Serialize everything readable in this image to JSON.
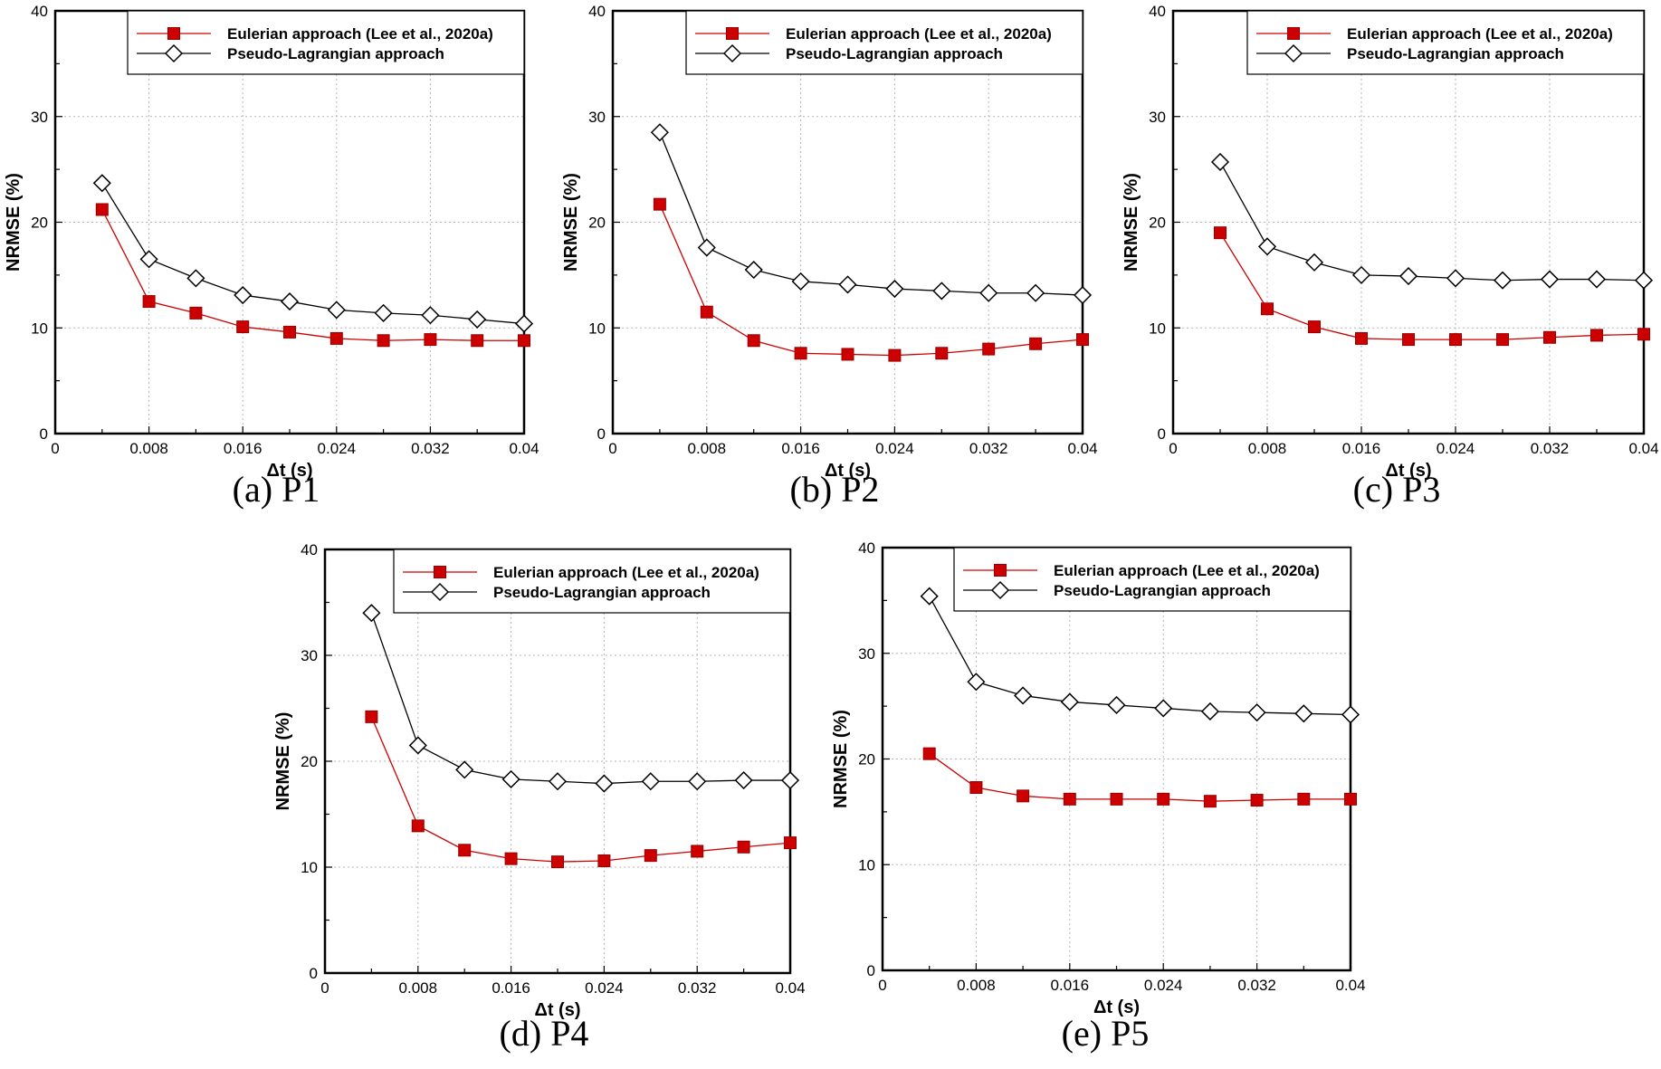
{
  "figure": {
    "panels": [
      {
        "caption": "(a) P1"
      },
      {
        "caption": "(b) P2"
      },
      {
        "caption": "(c) P3"
      },
      {
        "caption": "(d) P4"
      },
      {
        "caption": "(e) P5"
      }
    ]
  },
  "colors": {
    "eulerian": "#cc0000",
    "lagrangian": "#000000"
  },
  "chart_data": [
    {
      "type": "line",
      "title": "(a) P1",
      "xlabel": "Δt (s)",
      "ylabel": "NRMSE (%)",
      "xlim": [
        0,
        0.04
      ],
      "ylim": [
        0,
        40
      ],
      "xticks": [
        0,
        0.008,
        0.016,
        0.024,
        0.032,
        0.04
      ],
      "xtick_labels": [
        "0",
        "0.008",
        "0.016",
        "0.024",
        "0.032",
        "0.04"
      ],
      "yticks": [
        0,
        10,
        20,
        30,
        40
      ],
      "ytick_labels": [
        "0",
        "10",
        "20",
        "30",
        "40"
      ],
      "grid": true,
      "legend": "top-right",
      "x": [
        0.004,
        0.008,
        0.012,
        0.016,
        0.02,
        0.024,
        0.028,
        0.032,
        0.036,
        0.04
      ],
      "series": [
        {
          "name": "Eulerian approach (Lee et al., 2020a)",
          "marker": "square",
          "values": [
            21.2,
            12.5,
            11.4,
            10.1,
            9.6,
            9.0,
            8.8,
            8.9,
            8.8,
            8.8
          ]
        },
        {
          "name": "Pseudo-Lagrangian approach",
          "marker": "diamond",
          "values": [
            23.7,
            16.5,
            14.7,
            13.1,
            12.5,
            11.7,
            11.4,
            11.2,
            10.8,
            10.4
          ]
        }
      ]
    },
    {
      "type": "line",
      "title": "(b) P2",
      "xlabel": "Δt (s)",
      "ylabel": "NRMSE (%)",
      "xlim": [
        0,
        0.04
      ],
      "ylim": [
        0,
        40
      ],
      "xticks": [
        0,
        0.008,
        0.016,
        0.024,
        0.032,
        0.04
      ],
      "xtick_labels": [
        "0",
        "0.008",
        "0.016",
        "0.024",
        "0.032",
        "0.04"
      ],
      "yticks": [
        0,
        10,
        20,
        30,
        40
      ],
      "ytick_labels": [
        "0",
        "10",
        "20",
        "30",
        "40"
      ],
      "grid": true,
      "legend": "top-right",
      "x": [
        0.004,
        0.008,
        0.012,
        0.016,
        0.02,
        0.024,
        0.028,
        0.032,
        0.036,
        0.04
      ],
      "series": [
        {
          "name": "Eulerian approach (Lee et al., 2020a)",
          "marker": "square",
          "values": [
            21.7,
            11.5,
            8.8,
            7.6,
            7.5,
            7.4,
            7.6,
            8.0,
            8.5,
            8.9
          ]
        },
        {
          "name": "Pseudo-Lagrangian approach",
          "marker": "diamond",
          "values": [
            28.5,
            17.6,
            15.5,
            14.4,
            14.1,
            13.7,
            13.5,
            13.3,
            13.3,
            13.1
          ]
        }
      ]
    },
    {
      "type": "line",
      "title": "(c) P3",
      "xlabel": "Δt (s)",
      "ylabel": "NRMSE (%)",
      "xlim": [
        0,
        0.04
      ],
      "ylim": [
        0,
        40
      ],
      "xticks": [
        0,
        0.008,
        0.016,
        0.024,
        0.032,
        0.04
      ],
      "xtick_labels": [
        "0",
        "0.008",
        "0.016",
        "0.024",
        "0.032",
        "0.04"
      ],
      "yticks": [
        0,
        10,
        20,
        30,
        40
      ],
      "ytick_labels": [
        "0",
        "10",
        "20",
        "30",
        "40"
      ],
      "grid": true,
      "legend": "top-right",
      "x": [
        0.004,
        0.008,
        0.012,
        0.016,
        0.02,
        0.024,
        0.028,
        0.032,
        0.036,
        0.04
      ],
      "series": [
        {
          "name": "Eulerian approach (Lee et al., 2020a)",
          "marker": "square",
          "values": [
            19.0,
            11.8,
            10.1,
            9.0,
            8.9,
            8.9,
            8.9,
            9.1,
            9.3,
            9.4
          ]
        },
        {
          "name": "Pseudo-Lagrangian approach",
          "marker": "diamond",
          "values": [
            25.7,
            17.7,
            16.2,
            15.0,
            14.9,
            14.7,
            14.5,
            14.6,
            14.6,
            14.5
          ]
        }
      ]
    },
    {
      "type": "line",
      "title": "(d) P4",
      "xlabel": "Δt (s)",
      "ylabel": "NRMSE (%)",
      "xlim": [
        0,
        0.04
      ],
      "ylim": [
        0,
        40
      ],
      "xticks": [
        0,
        0.008,
        0.016,
        0.024,
        0.032,
        0.04
      ],
      "xtick_labels": [
        "0",
        "0.008",
        "0.016",
        "0.024",
        "0.032",
        "0.04"
      ],
      "yticks": [
        0,
        10,
        20,
        30,
        40
      ],
      "ytick_labels": [
        "0",
        "10",
        "20",
        "30",
        "40"
      ],
      "grid": true,
      "legend": "top-right",
      "x": [
        0.004,
        0.008,
        0.012,
        0.016,
        0.02,
        0.024,
        0.028,
        0.032,
        0.036,
        0.04
      ],
      "series": [
        {
          "name": "Eulerian approach (Lee et al., 2020a)",
          "marker": "square",
          "values": [
            24.2,
            13.9,
            11.6,
            10.8,
            10.5,
            10.6,
            11.1,
            11.5,
            11.9,
            12.3
          ]
        },
        {
          "name": "Pseudo-Lagrangian approach",
          "marker": "diamond",
          "values": [
            34.0,
            21.5,
            19.2,
            18.3,
            18.1,
            17.9,
            18.1,
            18.1,
            18.2,
            18.2
          ]
        }
      ]
    },
    {
      "type": "line",
      "title": "(e) P5",
      "xlabel": "Δt (s)",
      "ylabel": "NRMSE (%)",
      "xlim": [
        0,
        0.04
      ],
      "ylim": [
        0,
        40
      ],
      "xticks": [
        0,
        0.008,
        0.016,
        0.024,
        0.032,
        0.04
      ],
      "xtick_labels": [
        "0",
        "0.008",
        "0.016",
        "0.024",
        "0.032",
        "0.04"
      ],
      "yticks": [
        0,
        10,
        20,
        30,
        40
      ],
      "ytick_labels": [
        "0",
        "10",
        "20",
        "30",
        "40"
      ],
      "grid": true,
      "legend": "top-right",
      "x": [
        0.004,
        0.008,
        0.012,
        0.016,
        0.02,
        0.024,
        0.028,
        0.032,
        0.036,
        0.04
      ],
      "series": [
        {
          "name": "Eulerian approach (Lee et al., 2020a)",
          "marker": "square",
          "values": [
            20.5,
            17.3,
            16.5,
            16.2,
            16.2,
            16.2,
            16.0,
            16.1,
            16.2,
            16.2
          ]
        },
        {
          "name": "Pseudo-Lagrangian approach",
          "marker": "diamond",
          "values": [
            35.4,
            27.3,
            26.0,
            25.4,
            25.1,
            24.8,
            24.5,
            24.4,
            24.3,
            24.2
          ]
        }
      ]
    }
  ]
}
